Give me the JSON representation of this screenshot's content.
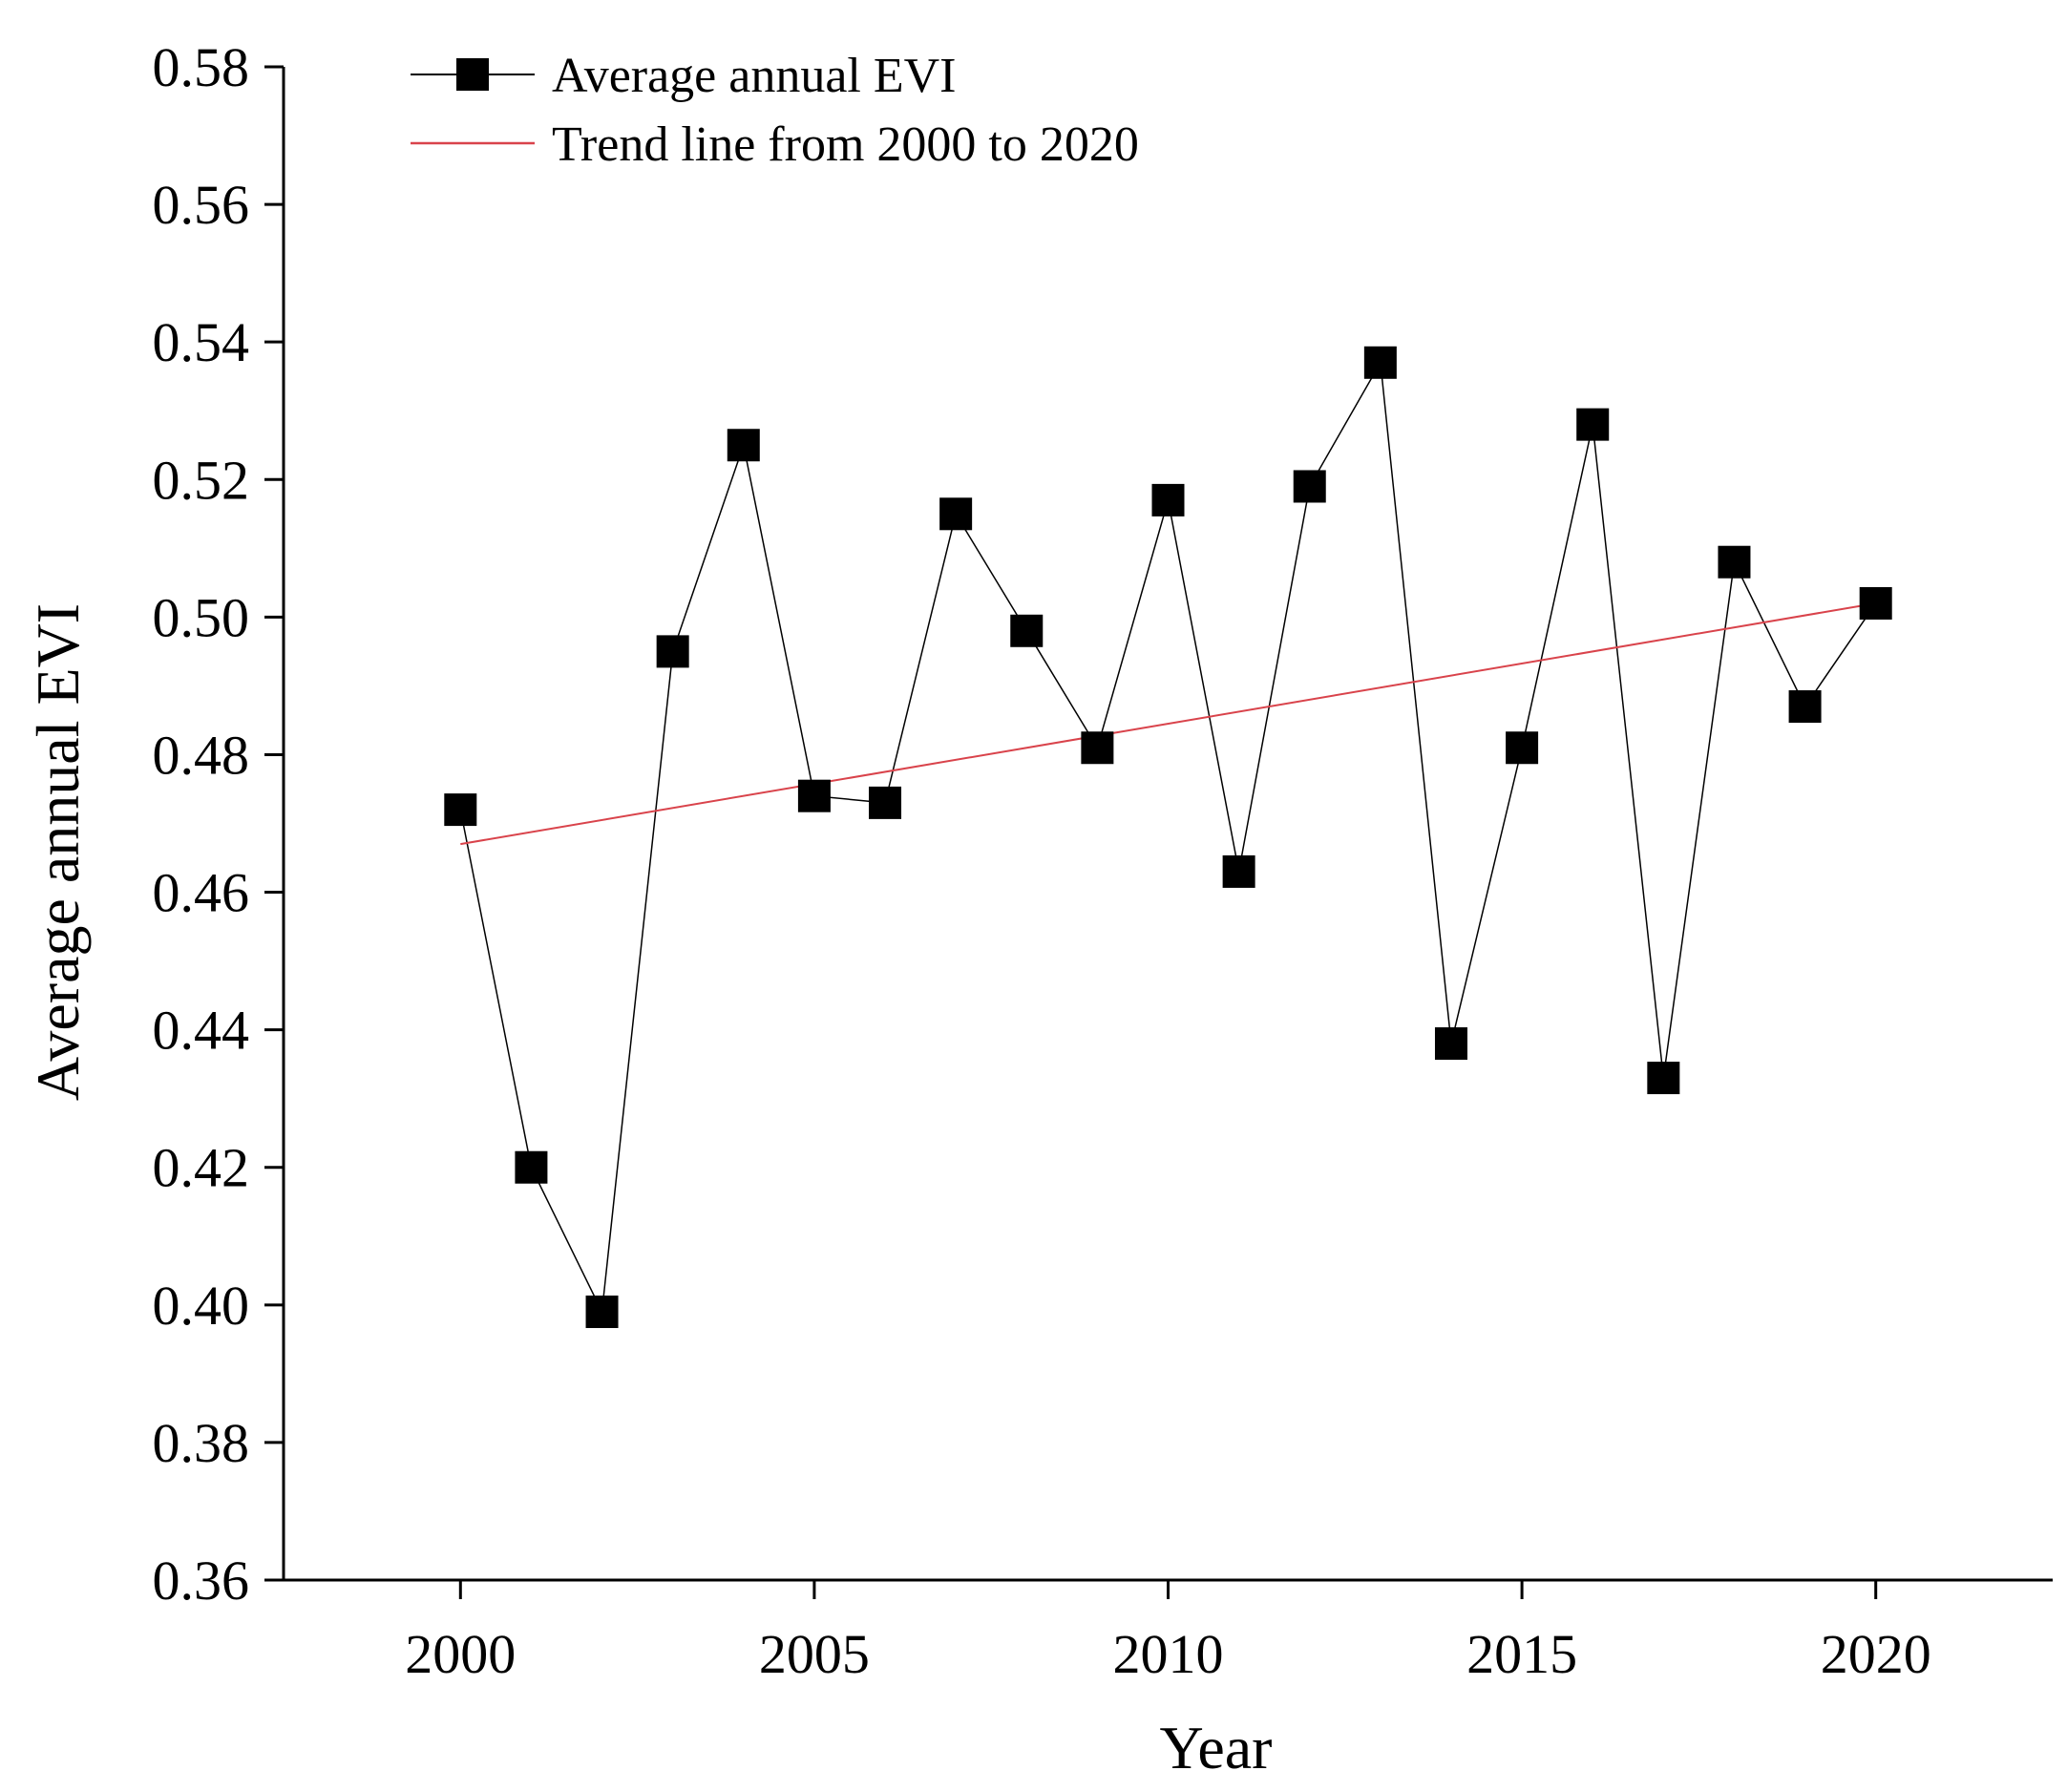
{
  "chart_data": {
    "type": "line",
    "title": "",
    "xlabel": "Year",
    "ylabel": "Average annual EVI",
    "xlim": [
      1997.5,
      2022.5
    ],
    "ylim": [
      0.36,
      0.58
    ],
    "xticks": [
      2000,
      2005,
      2010,
      2015,
      2020
    ],
    "xtick_labels": [
      "2000",
      "2005",
      "2010",
      "2015",
      "2020"
    ],
    "yticks": [
      0.36,
      0.38,
      0.4,
      0.42,
      0.44,
      0.46,
      0.48,
      0.5,
      0.52,
      0.54,
      0.56,
      0.58
    ],
    "ytick_labels": [
      "0.36",
      "0.38",
      "0.40",
      "0.42",
      "0.44",
      "0.46",
      "0.48",
      "0.50",
      "0.52",
      "0.54",
      "0.56",
      "0.58"
    ],
    "grid": false,
    "legend_position": "top-left",
    "series": [
      {
        "name": "Average annual EVI",
        "marker": "square",
        "color": "#000000",
        "x": [
          2000,
          2001,
          2002,
          2003,
          2004,
          2005,
          2006,
          2007,
          2008,
          2009,
          2010,
          2011,
          2012,
          2013,
          2014,
          2015,
          2016,
          2017,
          2018,
          2019,
          2020
        ],
        "values": [
          0.472,
          0.42,
          0.399,
          0.495,
          0.525,
          0.474,
          0.473,
          0.515,
          0.498,
          0.481,
          0.517,
          0.463,
          0.519,
          0.537,
          0.438,
          0.481,
          0.528,
          0.433,
          0.508,
          0.487,
          0.502
        ]
      },
      {
        "name": "Trend line from 2000 to 2020",
        "marker": "none",
        "color": "#d9434b",
        "x": [
          2000,
          2020
        ],
        "values": [
          0.467,
          0.502
        ]
      }
    ]
  }
}
